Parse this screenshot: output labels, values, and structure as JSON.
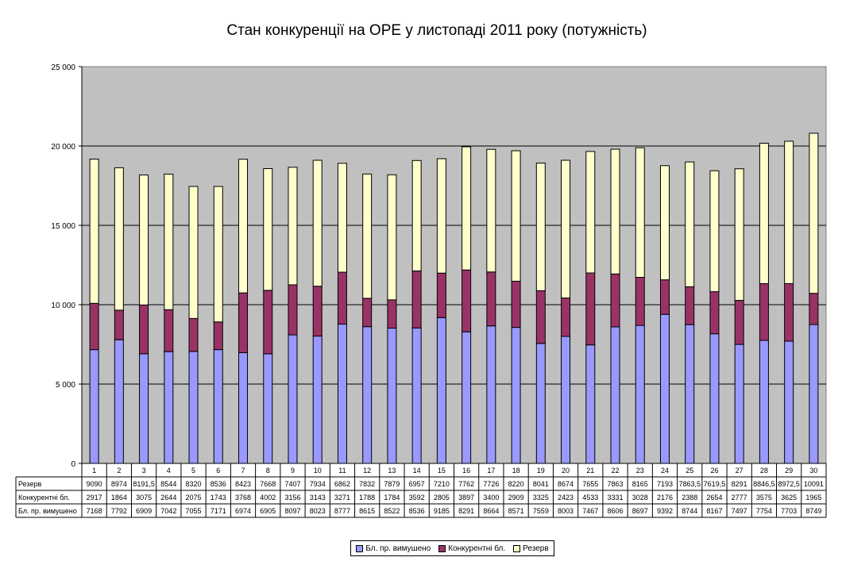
{
  "chart_data": {
    "type": "bar",
    "stacked": true,
    "title": "Стан конкуренції на ОРЕ  у листопаді 2011 року (потужність)",
    "ylim": [
      0,
      25000
    ],
    "y_ticks": [
      "0",
      "5 000",
      "10 000",
      "15 000",
      "20 000",
      "25 000"
    ],
    "grid": true,
    "legend_position": "bottom",
    "categories": [
      "1",
      "2",
      "3",
      "4",
      "5",
      "6",
      "7",
      "8",
      "9",
      "10",
      "11",
      "12",
      "13",
      "14",
      "15",
      "16",
      "17",
      "18",
      "19",
      "20",
      "21",
      "22",
      "23",
      "24",
      "25",
      "26",
      "27",
      "28",
      "29",
      "30"
    ],
    "series": [
      {
        "name": "Бл. пр. вимушено",
        "color": "#9999FF",
        "values": [
          7168,
          7792,
          6909,
          7042,
          7055,
          7171,
          6974,
          6905,
          8097,
          8023,
          8777,
          8615,
          8522,
          8536,
          9185,
          8291,
          8664,
          8571,
          7559,
          8003,
          7467,
          8606,
          8697,
          9392,
          8744,
          8167,
          7497,
          7754,
          7703,
          8749
        ],
        "labels": [
          "7168",
          "7792",
          "6909",
          "7042",
          "7055",
          "7171",
          "6974",
          "6905",
          "8097",
          "8023",
          "8777",
          "8615",
          "8522",
          "8536",
          "9185",
          "8291",
          "8664",
          "8571",
          "7559",
          "8003",
          "7467",
          "8606",
          "8697",
          "9392",
          "8744",
          "8167",
          "7497",
          "7754",
          "7703",
          "8749"
        ]
      },
      {
        "name": "Конкурентні бл.",
        "color": "#993366",
        "values": [
          2917,
          1864,
          3075,
          2644,
          2075,
          1743,
          3768,
          4002,
          3156,
          3143,
          3271,
          1788,
          1784,
          3592,
          2805,
          3897,
          3400,
          2909,
          3325,
          2423,
          4533,
          3331,
          3028,
          2176,
          2388,
          2654,
          2777,
          3575,
          3625,
          1965
        ],
        "labels": [
          "2917",
          "1864",
          "3075",
          "2644",
          "2075",
          "1743",
          "3768",
          "4002",
          "3156",
          "3143",
          "3271",
          "1788",
          "1784",
          "3592",
          "2805",
          "3897",
          "3400",
          "2909",
          "3325",
          "2423",
          "4533",
          "3331",
          "3028",
          "2176",
          "2388",
          "2654",
          "2777",
          "3575",
          "3625",
          "1965"
        ]
      },
      {
        "name": "Резерв",
        "color": "#FFFFCC",
        "values": [
          9090,
          8974,
          8191.5,
          8544,
          8320,
          8536,
          8423,
          7668,
          7407,
          7934,
          6862,
          7832,
          7879,
          6957,
          7210,
          7762,
          7726,
          8220,
          8041,
          8674,
          7655,
          7863,
          8165,
          7193,
          7863.5,
          7619.5,
          8291,
          8846.5,
          8972.5,
          10091
        ],
        "labels": [
          "9090",
          "8974",
          "8191,5",
          "8544",
          "8320",
          "8536",
          "8423",
          "7668",
          "7407",
          "7934",
          "6862",
          "7832",
          "7879",
          "6957",
          "7210",
          "7762",
          "7726",
          "8220",
          "8041",
          "8674",
          "7655",
          "7863",
          "8165",
          "7193",
          "7863,5",
          "7619,5",
          "8291",
          "8846,5",
          "8972,5",
          "10091"
        ]
      }
    ],
    "table_row_order": [
      "Резерв",
      "Конкурентні бл.",
      "Бл. пр. вимушено"
    ],
    "table_row_labels": [
      "Резерв",
      "Конкурентні бл.",
      "Бл. пр. вимушено"
    ]
  },
  "colors": {
    "plot_background": "#C0C0C0",
    "gridline": "#000000",
    "bar_outline": "#000000"
  }
}
